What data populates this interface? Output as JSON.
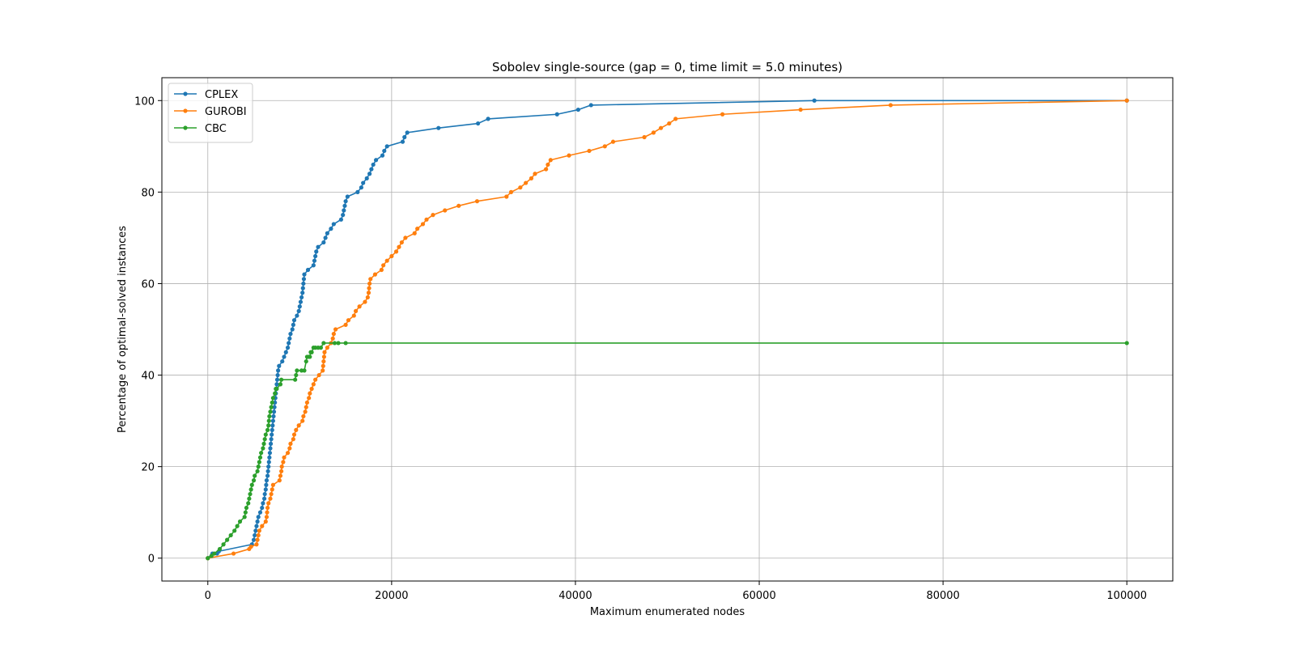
{
  "chart_data": {
    "type": "line",
    "title": "Sobolev single-source (gap = 0, time limit = 5.0 minutes)",
    "xlabel": "Maximum enumerated nodes",
    "ylabel": "Percentage of optimal-solved instances",
    "xlim": [
      -5000,
      105000
    ],
    "ylim": [
      -5,
      105
    ],
    "xticks": [
      0,
      20000,
      40000,
      60000,
      80000,
      100000
    ],
    "yticks": [
      0,
      20,
      40,
      60,
      80,
      100
    ],
    "grid": true,
    "legend_position": "top-left",
    "series": [
      {
        "name": "CPLEX",
        "color": "#1f77b4",
        "points": [
          [
            0,
            0
          ],
          [
            500,
            1
          ],
          [
            1000,
            1
          ],
          [
            1200,
            1.5
          ],
          [
            4800,
            3
          ],
          [
            5000,
            4
          ],
          [
            5100,
            5
          ],
          [
            5200,
            6
          ],
          [
            5300,
            7
          ],
          [
            5400,
            8
          ],
          [
            5500,
            9
          ],
          [
            5700,
            10
          ],
          [
            5900,
            11
          ],
          [
            6000,
            12
          ],
          [
            6150,
            13
          ],
          [
            6200,
            14
          ],
          [
            6300,
            15
          ],
          [
            6350,
            16
          ],
          [
            6400,
            17
          ],
          [
            6500,
            18
          ],
          [
            6550,
            19
          ],
          [
            6600,
            20
          ],
          [
            6650,
            21
          ],
          [
            6700,
            22
          ],
          [
            6750,
            23
          ],
          [
            6800,
            24
          ],
          [
            6850,
            25
          ],
          [
            6900,
            26
          ],
          [
            6950,
            27
          ],
          [
            7000,
            28
          ],
          [
            7050,
            29
          ],
          [
            7100,
            30
          ],
          [
            7150,
            31
          ],
          [
            7200,
            32
          ],
          [
            7250,
            33
          ],
          [
            7300,
            34
          ],
          [
            7350,
            35
          ],
          [
            7400,
            36
          ],
          [
            7450,
            37
          ],
          [
            7500,
            38
          ],
          [
            7550,
            39
          ],
          [
            7600,
            40
          ],
          [
            7650,
            41
          ],
          [
            7750,
            42
          ],
          [
            8100,
            43
          ],
          [
            8300,
            44
          ],
          [
            8500,
            45
          ],
          [
            8700,
            46
          ],
          [
            8800,
            47
          ],
          [
            8900,
            48
          ],
          [
            9000,
            49
          ],
          [
            9200,
            50
          ],
          [
            9300,
            51
          ],
          [
            9400,
            52
          ],
          [
            9700,
            53
          ],
          [
            9900,
            54
          ],
          [
            10000,
            55
          ],
          [
            10100,
            56
          ],
          [
            10200,
            57
          ],
          [
            10300,
            58
          ],
          [
            10350,
            59
          ],
          [
            10400,
            60
          ],
          [
            10450,
            61
          ],
          [
            10500,
            62
          ],
          [
            10900,
            63
          ],
          [
            11500,
            64
          ],
          [
            11600,
            65
          ],
          [
            11700,
            66
          ],
          [
            11800,
            67
          ],
          [
            12000,
            68
          ],
          [
            12600,
            69
          ],
          [
            12800,
            70
          ],
          [
            13000,
            71
          ],
          [
            13400,
            72
          ],
          [
            13700,
            73
          ],
          [
            14500,
            74
          ],
          [
            14700,
            75
          ],
          [
            14800,
            76
          ],
          [
            14900,
            77
          ],
          [
            15000,
            78
          ],
          [
            15200,
            79
          ],
          [
            16300,
            80
          ],
          [
            16700,
            81
          ],
          [
            16900,
            82
          ],
          [
            17300,
            83
          ],
          [
            17600,
            84
          ],
          [
            17800,
            85
          ],
          [
            18000,
            86
          ],
          [
            18300,
            87
          ],
          [
            19000,
            88
          ],
          [
            19200,
            89
          ],
          [
            19500,
            90
          ],
          [
            21200,
            91
          ],
          [
            21400,
            92
          ],
          [
            21700,
            93
          ],
          [
            25100,
            94
          ],
          [
            29400,
            95
          ],
          [
            30500,
            96
          ],
          [
            38000,
            97
          ],
          [
            40300,
            98
          ],
          [
            41700,
            99
          ],
          [
            66000,
            100
          ],
          [
            100000,
            100
          ]
        ]
      },
      {
        "name": "GUROBI",
        "color": "#ff7f0e",
        "points": [
          [
            0,
            0
          ],
          [
            2800,
            1
          ],
          [
            4500,
            2
          ],
          [
            4700,
            2.5
          ],
          [
            5300,
            3
          ],
          [
            5400,
            4
          ],
          [
            5500,
            5
          ],
          [
            5600,
            6
          ],
          [
            5900,
            7
          ],
          [
            6300,
            8
          ],
          [
            6400,
            9
          ],
          [
            6450,
            10
          ],
          [
            6500,
            11
          ],
          [
            6600,
            12
          ],
          [
            6800,
            13
          ],
          [
            6900,
            14
          ],
          [
            7000,
            15
          ],
          [
            7100,
            16
          ],
          [
            7800,
            17
          ],
          [
            7900,
            18
          ],
          [
            8000,
            19
          ],
          [
            8050,
            20
          ],
          [
            8200,
            21
          ],
          [
            8300,
            22
          ],
          [
            8700,
            23
          ],
          [
            8900,
            24
          ],
          [
            9000,
            25
          ],
          [
            9300,
            26
          ],
          [
            9400,
            27
          ],
          [
            9600,
            28
          ],
          [
            9900,
            29
          ],
          [
            10300,
            30
          ],
          [
            10400,
            31
          ],
          [
            10600,
            32
          ],
          [
            10700,
            33
          ],
          [
            10800,
            34
          ],
          [
            11000,
            35
          ],
          [
            11100,
            36
          ],
          [
            11300,
            37
          ],
          [
            11500,
            38
          ],
          [
            11700,
            39
          ],
          [
            12100,
            40
          ],
          [
            12500,
            41
          ],
          [
            12550,
            42
          ],
          [
            12600,
            43
          ],
          [
            12650,
            44
          ],
          [
            12700,
            45
          ],
          [
            13000,
            46
          ],
          [
            13400,
            47
          ],
          [
            13600,
            48
          ],
          [
            13700,
            49
          ],
          [
            13900,
            50
          ],
          [
            15000,
            51
          ],
          [
            15300,
            52
          ],
          [
            15900,
            53
          ],
          [
            16100,
            54
          ],
          [
            16500,
            55
          ],
          [
            17100,
            56
          ],
          [
            17400,
            57
          ],
          [
            17500,
            58
          ],
          [
            17550,
            59
          ],
          [
            17600,
            60
          ],
          [
            17700,
            61
          ],
          [
            18200,
            62
          ],
          [
            18900,
            63
          ],
          [
            19100,
            64
          ],
          [
            19500,
            65
          ],
          [
            20000,
            66
          ],
          [
            20500,
            67
          ],
          [
            20800,
            68
          ],
          [
            21100,
            69
          ],
          [
            21500,
            70
          ],
          [
            22500,
            71
          ],
          [
            22800,
            72
          ],
          [
            23400,
            73
          ],
          [
            23800,
            74
          ],
          [
            24500,
            75
          ],
          [
            25800,
            76
          ],
          [
            27300,
            77
          ],
          [
            29300,
            78
          ],
          [
            32500,
            79
          ],
          [
            33000,
            80
          ],
          [
            34000,
            81
          ],
          [
            34600,
            82
          ],
          [
            35200,
            83
          ],
          [
            35600,
            84
          ],
          [
            36800,
            85
          ],
          [
            37000,
            86
          ],
          [
            37300,
            87
          ],
          [
            39300,
            88
          ],
          [
            41500,
            89
          ],
          [
            43200,
            90
          ],
          [
            44100,
            91
          ],
          [
            47500,
            92
          ],
          [
            48500,
            93
          ],
          [
            49300,
            94
          ],
          [
            50200,
            95
          ],
          [
            50900,
            96
          ],
          [
            56000,
            97
          ],
          [
            64500,
            98
          ],
          [
            74300,
            99
          ],
          [
            100000,
            100
          ]
        ]
      },
      {
        "name": "CBC",
        "color": "#2ca02c",
        "points": [
          [
            0,
            0
          ],
          [
            400,
            0.5
          ],
          [
            700,
            1
          ],
          [
            1300,
            2
          ],
          [
            1700,
            3
          ],
          [
            2100,
            4
          ],
          [
            2500,
            5
          ],
          [
            2900,
            6
          ],
          [
            3200,
            7
          ],
          [
            3500,
            8
          ],
          [
            4000,
            9
          ],
          [
            4100,
            10
          ],
          [
            4200,
            11
          ],
          [
            4400,
            12
          ],
          [
            4500,
            13
          ],
          [
            4600,
            14
          ],
          [
            4700,
            15
          ],
          [
            4800,
            16
          ],
          [
            5000,
            17
          ],
          [
            5100,
            18
          ],
          [
            5400,
            19
          ],
          [
            5500,
            20
          ],
          [
            5600,
            21
          ],
          [
            5700,
            22
          ],
          [
            5800,
            23
          ],
          [
            6000,
            24
          ],
          [
            6100,
            25
          ],
          [
            6200,
            26
          ],
          [
            6300,
            27
          ],
          [
            6500,
            28
          ],
          [
            6600,
            29
          ],
          [
            6650,
            30
          ],
          [
            6700,
            31
          ],
          [
            6800,
            32
          ],
          [
            6900,
            33
          ],
          [
            7000,
            34
          ],
          [
            7100,
            35
          ],
          [
            7300,
            36
          ],
          [
            7400,
            37
          ],
          [
            7500,
            37
          ],
          [
            7900,
            38
          ],
          [
            8000,
            39
          ],
          [
            9500,
            39
          ],
          [
            9600,
            40
          ],
          [
            9700,
            41
          ],
          [
            10200,
            41
          ],
          [
            10500,
            41
          ],
          [
            10700,
            43
          ],
          [
            10800,
            44
          ],
          [
            11000,
            44
          ],
          [
            11100,
            44
          ],
          [
            11200,
            45
          ],
          [
            11300,
            45
          ],
          [
            11500,
            46
          ],
          [
            11700,
            46
          ],
          [
            12000,
            46
          ],
          [
            12300,
            46
          ],
          [
            12600,
            47
          ],
          [
            13800,
            47
          ],
          [
            14200,
            47
          ],
          [
            15000,
            47
          ],
          [
            100000,
            47
          ]
        ]
      }
    ]
  }
}
